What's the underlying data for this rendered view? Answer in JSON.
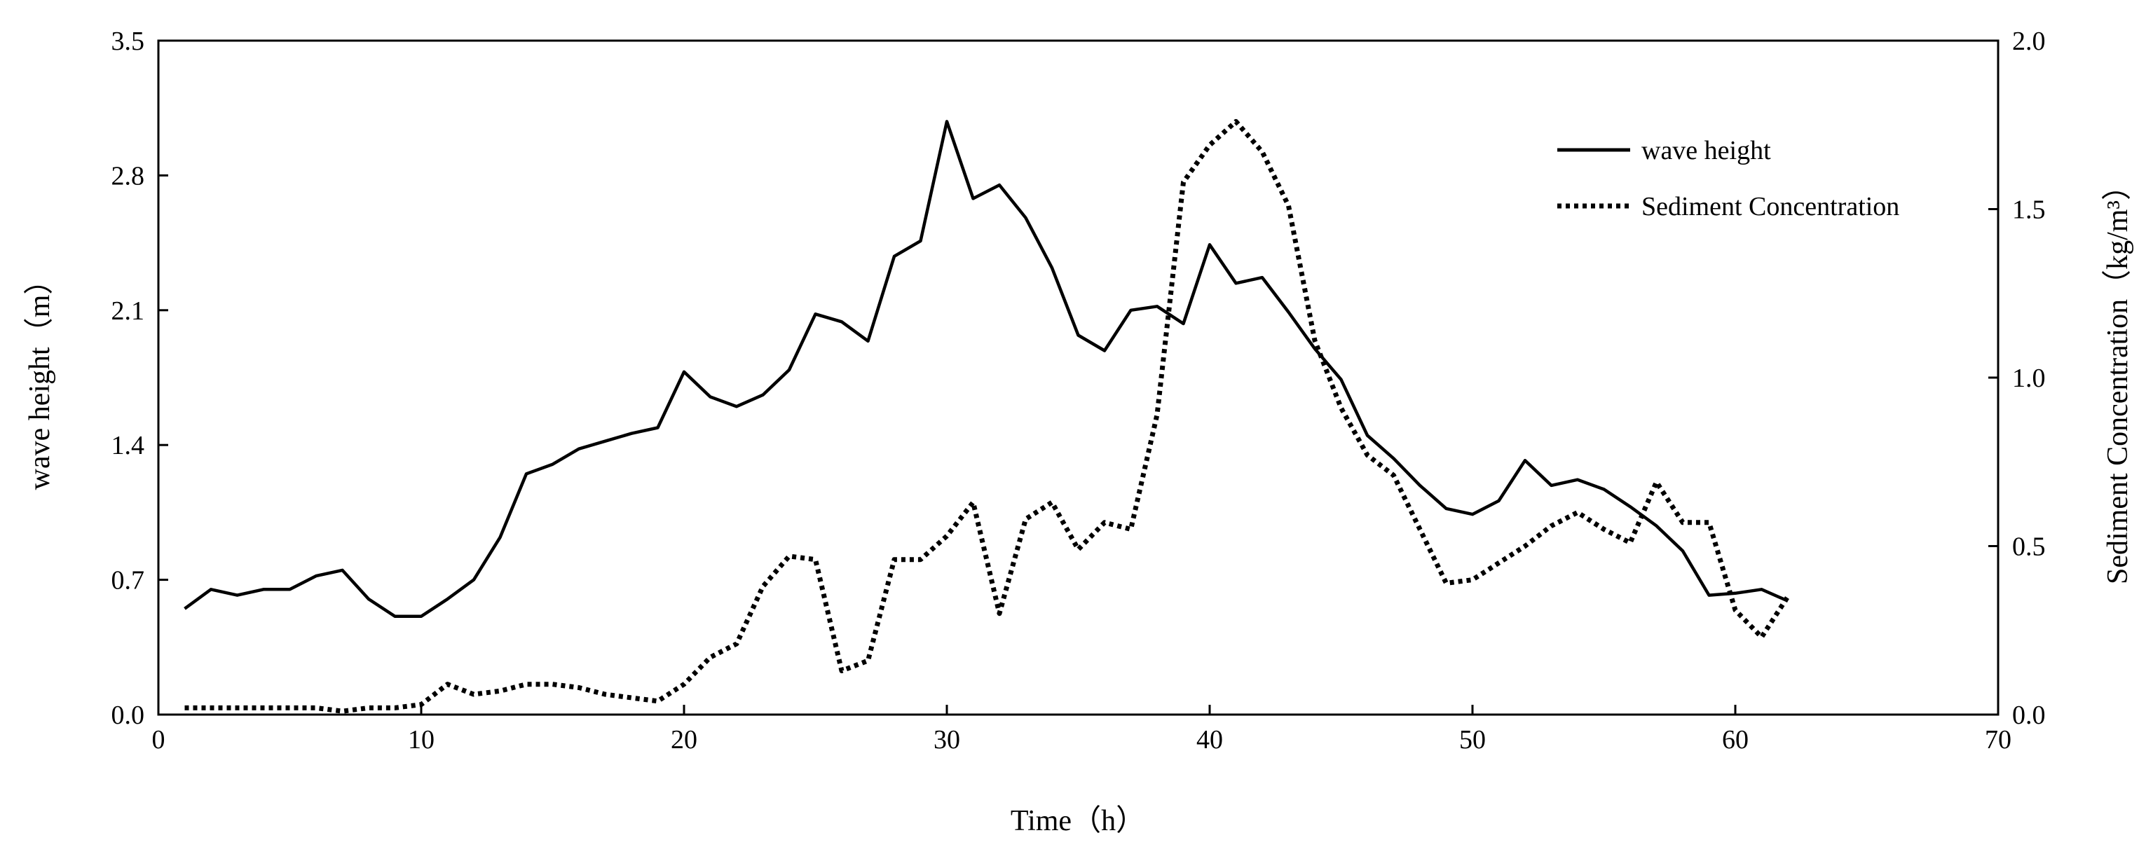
{
  "chart_data": {
    "type": "line",
    "xlabel": "Time（h）",
    "ylabel_left": "wave height（m）",
    "ylabel_right": "Sediment Concentration（kg/m³）",
    "xlim": [
      0,
      70
    ],
    "ylim_left": [
      0,
      3.5
    ],
    "ylim_right": [
      0,
      2.0
    ],
    "x_ticks": [
      "0",
      "10",
      "20",
      "30",
      "40",
      "50",
      "60",
      "70"
    ],
    "y_left_ticks": [
      "0.0",
      "0.7",
      "1.4",
      "2.1",
      "2.8",
      "3.5"
    ],
    "y_right_ticks": [
      "0.0",
      "0.5",
      "1.0",
      "1.5",
      "2.0"
    ],
    "grid": false,
    "legend_position": "top-right",
    "series": [
      {
        "name": "wave height",
        "axis": "left",
        "style": "solid",
        "color": "#000000",
        "x": [
          1,
          2,
          3,
          4,
          5,
          6,
          7,
          8,
          9,
          10,
          11,
          12,
          13,
          14,
          15,
          16,
          17,
          18,
          19,
          20,
          21,
          22,
          23,
          24,
          25,
          26,
          27,
          28,
          29,
          30,
          31,
          32,
          33,
          34,
          35,
          36,
          37,
          38,
          39,
          40,
          41,
          42,
          43,
          44,
          45,
          46,
          47,
          48,
          49,
          50,
          51,
          52,
          53,
          54,
          55,
          56,
          57,
          58,
          59,
          60,
          61,
          62
        ],
        "values": [
          0.55,
          0.65,
          0.62,
          0.65,
          0.65,
          0.72,
          0.75,
          0.6,
          0.51,
          0.51,
          0.6,
          0.7,
          0.92,
          1.25,
          1.3,
          1.38,
          1.42,
          1.46,
          1.49,
          1.78,
          1.65,
          1.6,
          1.66,
          1.79,
          2.08,
          2.04,
          1.94,
          2.38,
          2.46,
          3.08,
          2.68,
          2.75,
          2.58,
          2.32,
          1.97,
          1.89,
          2.1,
          2.12,
          2.03,
          2.44,
          2.24,
          2.27,
          2.09,
          1.9,
          1.74,
          1.45,
          1.33,
          1.19,
          1.07,
          1.04,
          1.11,
          1.32,
          1.19,
          1.22,
          1.17,
          1.08,
          0.98,
          0.85,
          0.62,
          0.63,
          0.65,
          0.59
        ]
      },
      {
        "name": "Sediment Concentration",
        "axis": "right",
        "style": "dotted",
        "color": "#000000",
        "x": [
          1,
          2,
          3,
          4,
          5,
          6,
          7,
          8,
          9,
          10,
          11,
          12,
          13,
          14,
          15,
          16,
          17,
          18,
          19,
          20,
          21,
          22,
          23,
          24,
          25,
          26,
          27,
          28,
          29,
          30,
          31,
          32,
          33,
          34,
          35,
          36,
          37,
          38,
          39,
          40,
          41,
          42,
          43,
          44,
          45,
          46,
          47,
          48,
          49,
          50,
          51,
          52,
          53,
          54,
          55,
          56,
          57,
          58,
          59,
          60,
          61,
          62
        ],
        "values": [
          0.02,
          0.02,
          0.02,
          0.02,
          0.02,
          0.02,
          0.01,
          0.02,
          0.02,
          0.03,
          0.09,
          0.06,
          0.07,
          0.09,
          0.09,
          0.08,
          0.06,
          0.05,
          0.04,
          0.09,
          0.17,
          0.21,
          0.38,
          0.47,
          0.46,
          0.13,
          0.16,
          0.46,
          0.46,
          0.53,
          0.63,
          0.3,
          0.58,
          0.63,
          0.49,
          0.57,
          0.55,
          0.89,
          1.58,
          1.69,
          1.76,
          1.67,
          1.51,
          1.11,
          0.91,
          0.77,
          0.71,
          0.55,
          0.39,
          0.4,
          0.45,
          0.5,
          0.56,
          0.6,
          0.55,
          0.51,
          0.69,
          0.57,
          0.57,
          0.31,
          0.23,
          0.35
        ]
      }
    ]
  }
}
